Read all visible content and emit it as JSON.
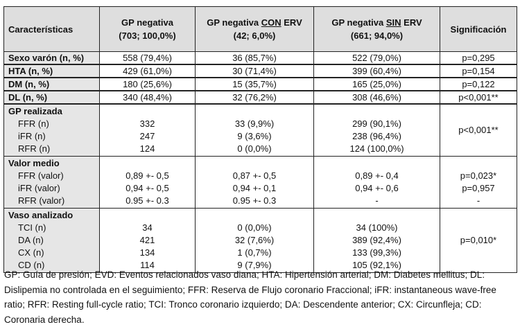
{
  "header": {
    "col0": "Características",
    "col1_line1": "GP negativa",
    "col1_line2": "(703; 100,0%)",
    "col2_pre": "GP negativa ",
    "col2_u": "CON",
    "col2_post": " ERV",
    "col2_line2": "(42; 6,0%)",
    "col3_pre": "GP negativa ",
    "col3_u": "SIN",
    "col3_post": " ERV",
    "col3_line2": "(661; 94,0%)",
    "col4": "Significación"
  },
  "rows": [
    {
      "label": "Sexo varón (n, %)",
      "all": "558 (79,4%)",
      "con": "36  (85,7%)",
      "sin": "522 (79,0%)",
      "p": "p=0,295"
    },
    {
      "label": "HTA (n, %)",
      "all": "429 (61,0%)",
      "con": "30 (71,4%)",
      "sin": "399 (60,4%)",
      "p": "p=0,154"
    },
    {
      "label": "DM (n, %)",
      "all": "180 (25,6%)",
      "con": "15 (35,7%)",
      "sin": "165 (25,0%)",
      "p": "p=0,122"
    },
    {
      "label": "DL (n, %)",
      "all": "340 (48,4%)",
      "con": "32 (76,2%)",
      "sin": "308 (46,6%)",
      "p": "p<0,001**"
    }
  ],
  "groups": [
    {
      "title": "GP realizada",
      "items": [
        {
          "label": "FFR (n)",
          "all": "332",
          "con": "33 (9,9%)",
          "sin": "299 (90,1%)"
        },
        {
          "label": "iFR (n)",
          "all": "247",
          "con": "9 (3,6%)",
          "sin": "238 (96,4%)"
        },
        {
          "label": "RFR (n)",
          "all": "124",
          "con": "0 (0,0%)",
          "sin": "124 (100,0%)"
        }
      ],
      "p": [
        "p<0,001**"
      ]
    },
    {
      "title": "Valor medio",
      "items": [
        {
          "label": "FFR (valor)",
          "all": "0,89 +- 0,5",
          "con": "0,87 +- 0,5",
          "sin": "0,89 +- 0,4",
          "p": "p=0,023*"
        },
        {
          "label": "iFR  (valor)",
          "all": "0,94 +- 0,5",
          "con": "0,94 +- 0,1",
          "sin": "0,94 +- 0,6",
          "p": "p=0,957"
        },
        {
          "label": "RFR  (valor)",
          "all": "0.95 +- 0.3",
          "con": "0.95 +- 0.3",
          "sin": "-",
          "p": "-"
        }
      ]
    },
    {
      "title": "Vaso analizado",
      "items": [
        {
          "label": "TCI (n)",
          "all": "34",
          "con": "0 (0,0%)",
          "sin": "34 (100%)"
        },
        {
          "label": "DA (n)",
          "all": "421",
          "con": "32 (7,6%)",
          "sin": "389 (92,4%)"
        },
        {
          "label": "CX (n)",
          "all": "134",
          "con": "1 (0,7%)",
          "sin": "133 (99,3%)"
        },
        {
          "label": "CD (n)",
          "all": "114",
          "con": "9 (7,9%)",
          "sin": "105 (92,1%)"
        }
      ],
      "p": [
        "p=0,010*"
      ]
    }
  ],
  "footnote": "GP: Guía de presión; EVD: Eventos relacionados vaso diana; HTA: Hipertensión arterial; DM: Diabetes mellitus; DL: Dislipemia no controlada en el seguimiento; FFR: Reserva de Flujo coronario Fraccional; iFR: instantaneous wave-free ratio; RFR: Resting full-cycle ratio; TCI: Tronco coronario izquierdo; DA: Descendente anterior; CX: Circunfleja; CD: Coronaria derecha."
}
